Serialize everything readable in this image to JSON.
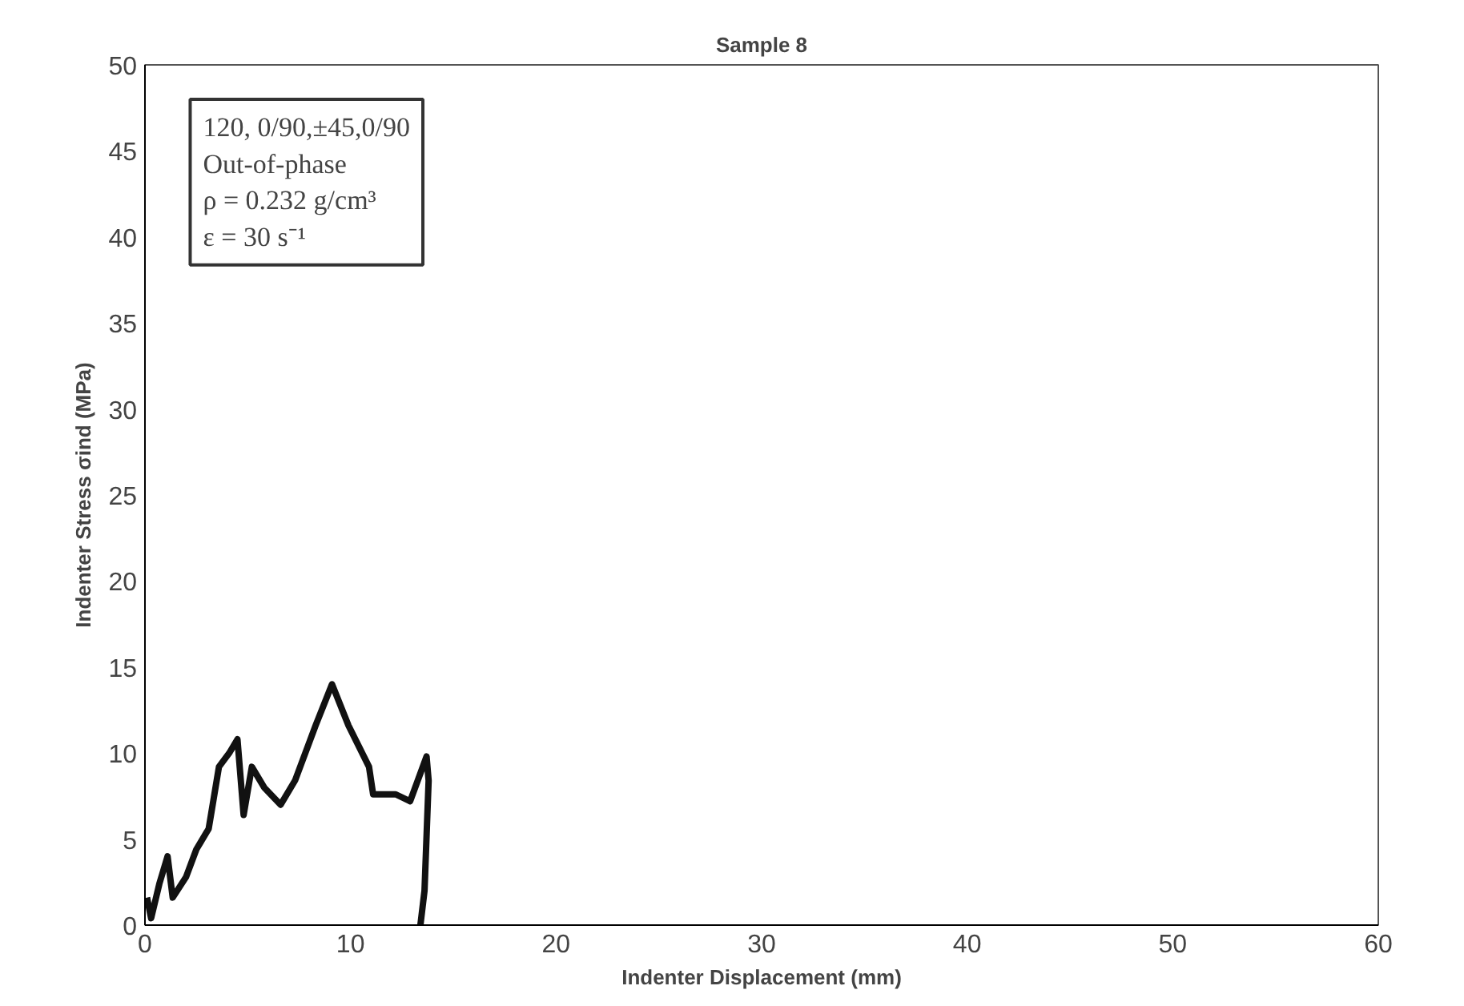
{
  "chart_data": {
    "type": "line",
    "title": "Sample 8",
    "xlabel": "Indenter Displacement (mm)",
    "ylabel": "Indenter Stress σind (MPa)",
    "annotations": [
      "120, 0/90,±45,0/90",
      "Out-of-phase",
      "ρ = 0.232 g/cm³",
      "ε = 30 s⁻¹"
    ],
    "xlim": [
      0,
      60
    ],
    "ylim": [
      0,
      50
    ],
    "xticks": [
      0,
      10,
      20,
      30,
      40,
      50,
      60
    ],
    "yticks": [
      0,
      5,
      10,
      15,
      20,
      25,
      30,
      35,
      40,
      45,
      50
    ],
    "grid": false,
    "marker": "none",
    "line_style": "solid",
    "series": [
      {
        "color": "#111111",
        "x": [
          0.1,
          0.3,
          0.7,
          1.1,
          1.35,
          2.0,
          2.5,
          3.1,
          3.6,
          4.1,
          4.5,
          4.8,
          5.2,
          5.8,
          6.6,
          7.3,
          8.3,
          9.1,
          9.9,
          10.9,
          11.1,
          12.2,
          12.9,
          13.7,
          13.8,
          13.6,
          13.4
        ],
        "values": [
          1.6,
          0.4,
          2.4,
          4.0,
          1.6,
          2.8,
          4.4,
          5.6,
          9.2,
          10.0,
          10.8,
          6.4,
          9.2,
          8.0,
          7.0,
          8.4,
          11.6,
          14.0,
          11.6,
          9.2,
          7.6,
          7.6,
          7.2,
          9.8,
          8.4,
          2.0,
          0.0
        ]
      }
    ]
  }
}
